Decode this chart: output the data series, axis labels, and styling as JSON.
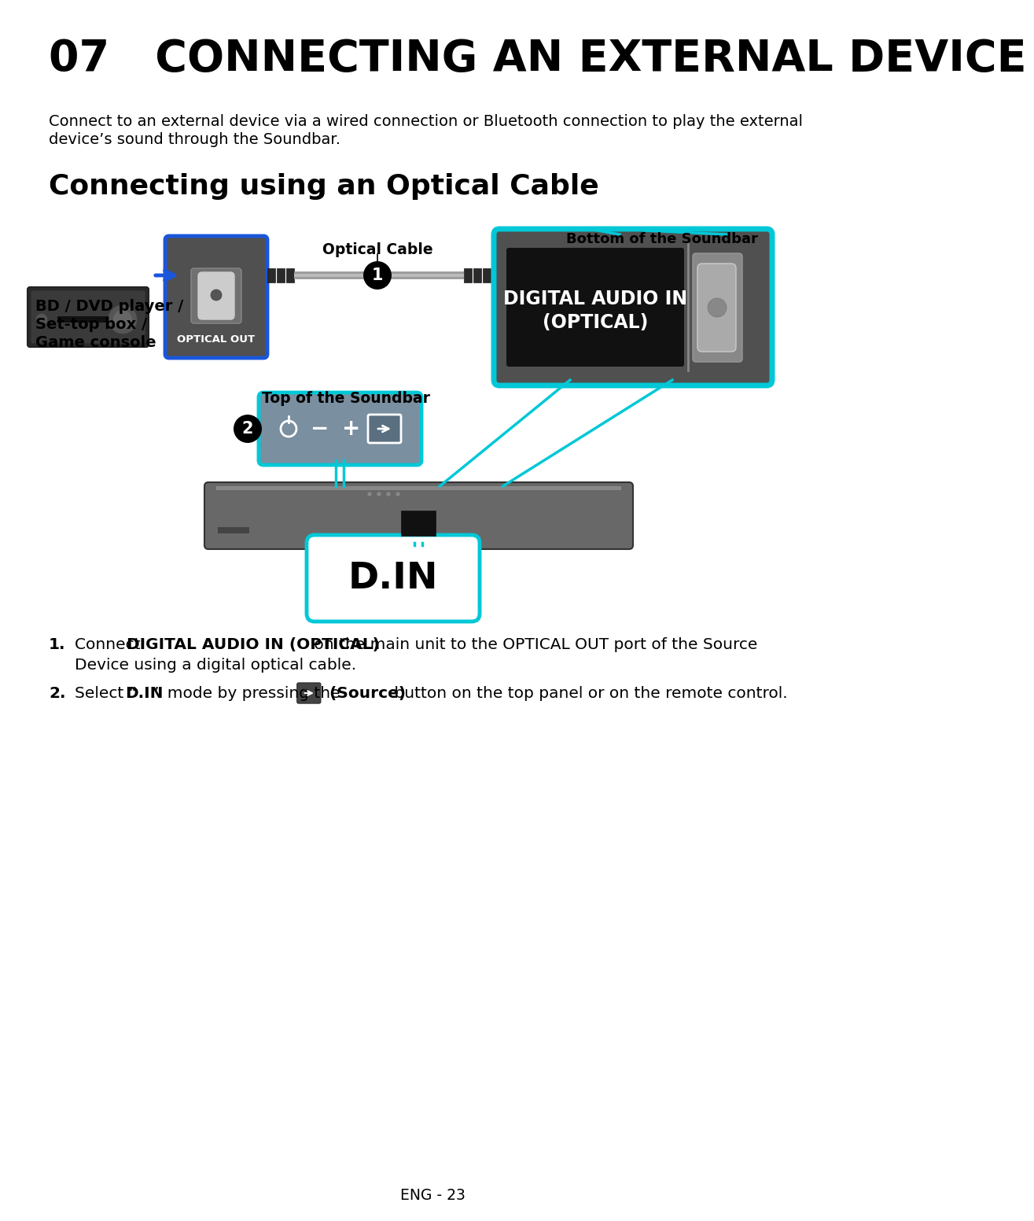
{
  "title": "07   CONNECTING AN EXTERNAL DEVICE",
  "subtitle_line1": "Connect to an external device via a wired connection or Bluetooth connection to play the external",
  "subtitle_line2": "device’s sound through the Soundbar.",
  "section_title": "Connecting using an Optical Cable",
  "label_bottom_soundbar": "Bottom of the Soundbar",
  "label_optical_cable": "Optical Cable",
  "label_top_soundbar": "Top of the Soundbar",
  "label_bd_line1": "BD / DVD player /",
  "label_bd_line2": "Set-top box /",
  "label_bd_line3": "Game console",
  "label_optical_out": "OPTICAL OUT",
  "label_digital_audio_line1": "DIGITAL AUDIO IN",
  "label_digital_audio_line2": "(OPTICAL)",
  "label_din": "D.IN",
  "footer": "ENG - 23",
  "cyan": "#00C8D7",
  "blue": "#1A56DB",
  "dark_gray": "#4a4a4a",
  "mid_gray": "#6a6a6a",
  "soundbar_gray": "#686868",
  "black": "#000000",
  "white": "#ffffff",
  "bg": "#ffffff",
  "step1_normal1": "Connect ",
  "step1_bold": "DIGITAL AUDIO IN (OPTICAL)",
  "step1_normal2": " on the main unit to the OPTICAL OUT port of the Source",
  "step1_line2": "Device using a digital optical cable.",
  "step2_pre": "Select “",
  "step2_din": "D.IN",
  "step2_mid": "” mode by pressing the ",
  "step2_source": "(Source)",
  "step2_post": " button on the top panel or on the remote control."
}
